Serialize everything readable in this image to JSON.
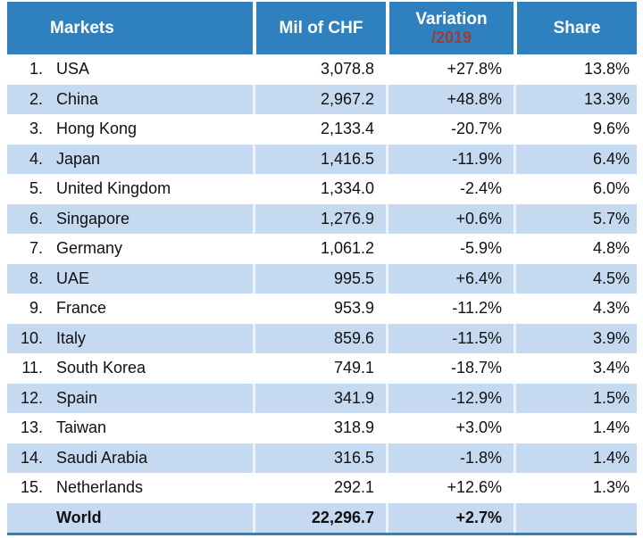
{
  "colors": {
    "header_bg": "#2E81BE",
    "stripe_bg": "#C5DAF1",
    "header_text": "#FFFFFF",
    "variation_sublabel_red": "#A23B38",
    "body_text": "#111111"
  },
  "chart_data": {
    "type": "table",
    "header": {
      "markets": "Markets",
      "chf": "Mil of CHF",
      "variation": "Variation",
      "variation_sub": "/2019",
      "share": "Share"
    },
    "rows": [
      {
        "rank": "1.",
        "market": "USA",
        "chf": "3,078.8",
        "variation": "+27.8%",
        "share": "13.8%"
      },
      {
        "rank": "2.",
        "market": "China",
        "chf": "2,967.2",
        "variation": "+48.8%",
        "share": "13.3%"
      },
      {
        "rank": "3.",
        "market": "Hong Kong",
        "chf": "2,133.4",
        "variation": "-20.7%",
        "share": "9.6%"
      },
      {
        "rank": "4.",
        "market": "Japan",
        "chf": "1,416.5",
        "variation": "-11.9%",
        "share": "6.4%"
      },
      {
        "rank": "5.",
        "market": "United Kingdom",
        "chf": "1,334.0",
        "variation": "-2.4%",
        "share": "6.0%"
      },
      {
        "rank": "6.",
        "market": "Singapore",
        "chf": "1,276.9",
        "variation": "+0.6%",
        "share": "5.7%"
      },
      {
        "rank": "7.",
        "market": "Germany",
        "chf": "1,061.2",
        "variation": "-5.9%",
        "share": "4.8%"
      },
      {
        "rank": "8.",
        "market": "UAE",
        "chf": "995.5",
        "variation": "+6.4%",
        "share": "4.5%"
      },
      {
        "rank": "9.",
        "market": "France",
        "chf": "953.9",
        "variation": "-11.2%",
        "share": "4.3%"
      },
      {
        "rank": "10.",
        "market": "Italy",
        "chf": "859.6",
        "variation": "-11.5%",
        "share": "3.9%"
      },
      {
        "rank": "11.",
        "market": "South Korea",
        "chf": "749.1",
        "variation": "-18.7%",
        "share": "3.4%"
      },
      {
        "rank": "12.",
        "market": "Spain",
        "chf": "341.9",
        "variation": "-12.9%",
        "share": "1.5%"
      },
      {
        "rank": "13.",
        "market": "Taiwan",
        "chf": "318.9",
        "variation": "+3.0%",
        "share": "1.4%"
      },
      {
        "rank": "14.",
        "market": "Saudi Arabia",
        "chf": "316.5",
        "variation": "-1.8%",
        "share": "1.4%"
      },
      {
        "rank": "15.",
        "market": "Netherlands",
        "chf": "292.1",
        "variation": "+12.6%",
        "share": "1.3%"
      },
      {
        "rank": "",
        "market": "World",
        "chf": "22,296.7",
        "variation": "+2.7%",
        "share": "",
        "is_total": true
      }
    ]
  }
}
